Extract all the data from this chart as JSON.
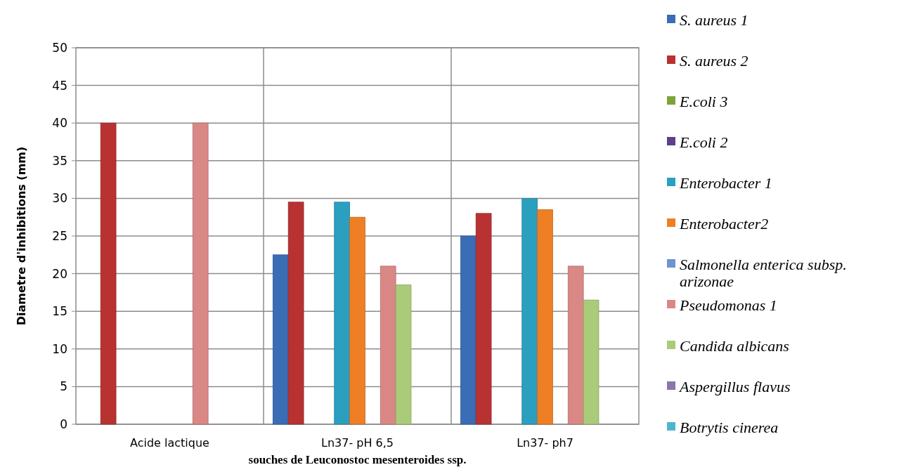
{
  "chart_data": {
    "type": "bar",
    "xlabel": "souches de  Leuconostoc mesenteroides ssp.",
    "ylabel": "Diametre d'inhibitions (mm)",
    "categories": [
      "Acide lactique",
      "Ln37- pH 6,5",
      "Ln37- ph7"
    ],
    "ylim": [
      0,
      50
    ],
    "yticks": [
      0,
      5,
      10,
      15,
      20,
      25,
      30,
      35,
      40,
      45,
      50
    ],
    "grid": true,
    "legend": "right",
    "series": [
      {
        "name": "S. aureus 1",
        "color": "#3a6db5",
        "values": [
          null,
          22.5,
          25
        ]
      },
      {
        "name": "S. aureus 2",
        "color": "#b83232",
        "values": [
          40,
          29.5,
          28
        ]
      },
      {
        "name": "E.coli 3",
        "color": "#7fa33a",
        "values": [
          null,
          0,
          0
        ]
      },
      {
        "name": "E.coli 2",
        "color": "#5d3f8a",
        "values": [
          null,
          0,
          0
        ]
      },
      {
        "name": "Enterobacter 1",
        "color": "#2b9fbf",
        "values": [
          null,
          29.5,
          30
        ]
      },
      {
        "name": "Enterobacter2",
        "color": "#ef7f25",
        "values": [
          null,
          27.5,
          28.5
        ]
      },
      {
        "name": "Salmonella enterica subsp. arizonae",
        "color": "#6f93cc",
        "values": [
          null,
          0,
          0
        ]
      },
      {
        "name": "Pseudomonas 1",
        "color": "#d98886",
        "values": [
          40,
          21,
          21
        ]
      },
      {
        "name": "Candida albicans",
        "color": "#aacb7a",
        "values": [
          null,
          18.5,
          16.5
        ]
      },
      {
        "name": "Aspergillus flavus",
        "color": "#8a76a8",
        "values": [
          null,
          0,
          0
        ]
      },
      {
        "name": "Botrytis cinerea",
        "color": "#4fb5ce",
        "values": [
          null,
          0,
          0
        ]
      }
    ]
  }
}
